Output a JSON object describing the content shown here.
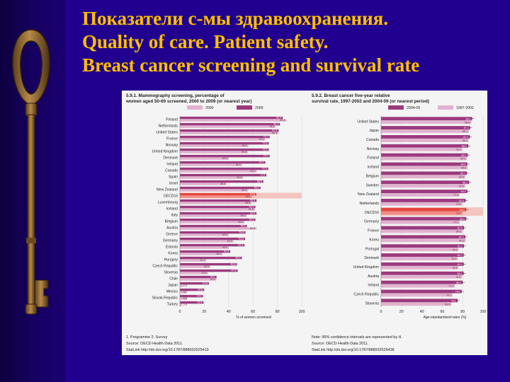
{
  "slide": {
    "title_lines": [
      "Показатели с-мы здравоохранения.",
      "Quality of care. Patient safety.",
      "Breast cancer screening and survival rate"
    ]
  },
  "colors": {
    "background": "#21008f",
    "title": "#ffbf00",
    "bar_recent": "#9b3a7e",
    "bar_earlier": "#e0b3cf",
    "oecd_highlight": "#e4473f"
  },
  "icons": [
    "key-icon"
  ],
  "footnotes": {
    "left_1": "1. Programme    2. Survey",
    "left_2": "Source: OECD Health Data 2011.",
    "left_3": "StatLink  http://dx.doi.org/10.1787/888932525419",
    "right_1": "Note: 95% confidence intervals are represented by H.",
    "right_2": "Source: OECD Health Data 2011.",
    "right_3": "StatLink  http://dx.doi.org/10.1787/888932525438"
  },
  "chart_data": [
    {
      "type": "bar",
      "orientation": "horizontal",
      "title": "5.9.1. Mammography screening, percentage of women aged 50-69 screened, 2000 to 2009 (or nearest year)",
      "legend": [
        "2000",
        "2009"
      ],
      "legend_position": "top",
      "xlabel": "% of women screened",
      "xlim": [
        0,
        100
      ],
      "xticks": [
        0,
        20,
        40,
        60,
        80,
        100
      ],
      "categories": [
        "Finland",
        "Netherlands",
        "United States",
        "France",
        "Norway",
        "United Kingdom",
        "Denmark",
        "Ireland",
        "Canada",
        "Spain",
        "Israel",
        "New Zealand",
        "OECD16",
        "Luxembourg",
        "Iceland",
        "Italy",
        "Belgium",
        "Austria",
        "Greece",
        "Germany",
        "Estonia",
        "Korea",
        "Hungary",
        "Czech Republic",
        "Slovenia",
        "Chile",
        "Japan",
        "Mexico",
        "Slovak Republic",
        "Turkey"
      ],
      "series": [
        {
          "name": "2000",
          "values": [
            87.4,
            78.5,
            80.9,
            70.0,
            56.2,
            55.9,
            40.0,
            51.1,
            63.0,
            52.0,
            38.3,
            55.9,
            59.1,
            58.8,
            61.6,
            55.0,
            53.0,
            62.9,
            40.0,
            44.0,
            40.0,
            35.0,
            21.7,
            25.0,
            23.0,
            30.0,
            2.8,
            5.0,
            6.0,
            2.0
          ]
        },
        {
          "name": "2009",
          "values": [
            84.4,
            82.1,
            81.0,
            73.7,
            73.0,
            73.0,
            73.7,
            70.1,
            72.5,
            71.0,
            68.5,
            66.2,
            62.8,
            62.9,
            62.0,
            62.9,
            62.0,
            55.0,
            53.8,
            53.5,
            53.0,
            41.3,
            50.9,
            46.8,
            47.4,
            30.1,
            23.8,
            19.8,
            19.0,
            19.4
          ]
        }
      ]
    },
    {
      "type": "bar",
      "orientation": "horizontal",
      "title": "5.9.2. Breast cancer five-year relative survival rate, 1997-2002 and 2004-09 (or nearest period)",
      "legend": [
        "2004-09",
        "1997-2002"
      ],
      "legend_position": "top",
      "xlabel": "Age-standardised rates (%)",
      "xlim": [
        0,
        100
      ],
      "xticks": [
        0,
        20,
        40,
        60,
        80,
        100
      ],
      "categories": [
        "United States",
        "Japan",
        "Canada",
        "Norway",
        "Finland",
        "Iceland",
        "Belgium",
        "Sweden",
        "New Zealand",
        "Netherlands",
        "OECD16",
        "Germany",
        "France",
        "Korea",
        "Portugal",
        "Denmark",
        "United Kingdom",
        "Austria",
        "Ireland",
        "Czech Republic",
        "Slovenia"
      ],
      "series": [
        {
          "name": "2004-09",
          "values": [
            89.3,
            87.3,
            87.0,
            85.5,
            85.0,
            84.5,
            84.1,
            86.3,
            84.6,
            82.8,
            83.5,
            83.5,
            81.3,
            82.5,
            81.3,
            81.0,
            81.0,
            81.0,
            80.0,
            79.0,
            75.0
          ]
        },
        {
          "name": "1997-2002",
          "values": [
            88.5,
            86.1,
            86.0,
            79.7,
            84.2,
            84.8,
            82.6,
            82.5,
            77.0,
            79.5,
            79.7,
            77.0,
            80.0,
            82.9,
            76.0,
            75.2,
            75.9,
            79.3,
            72.3,
            70.1,
            69.0
          ]
        }
      ]
    }
  ]
}
